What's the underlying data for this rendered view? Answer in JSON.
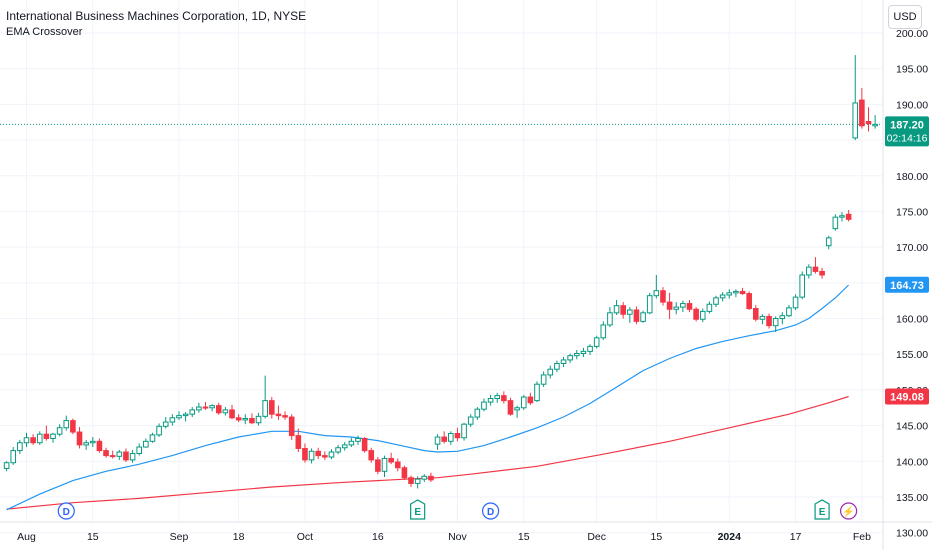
{
  "header": {
    "title": "International Business Machines Corporation, 1D, NYSE",
    "indicator": "EMA Crossover"
  },
  "currency_label": "USD",
  "colors": {
    "up": "#089981",
    "down": "#f23645",
    "ema_fast": "#2196f3",
    "ema_slow": "#f23645",
    "grid": "#f0f3fa",
    "last_price": "#089981"
  },
  "chart_data": {
    "type": "candlestick",
    "title": "International Business Machines Corporation, 1D, NYSE",
    "indicator": "EMA Crossover",
    "ylim": [
      127.0,
      201.0
    ],
    "y_ticks": [
      "200.00",
      "195.00",
      "190.00",
      "185.00",
      "180.00",
      "175.00",
      "170.00",
      "165.00",
      "160.00",
      "155.00",
      "150.00",
      "145.00",
      "140.00",
      "135.00",
      "130.00"
    ],
    "x_ticks": [
      {
        "label": "Aug",
        "index": 3,
        "bold": false
      },
      {
        "label": "15",
        "index": 13,
        "bold": false
      },
      {
        "label": "Sep",
        "index": 26,
        "bold": false
      },
      {
        "label": "18",
        "index": 35,
        "bold": false
      },
      {
        "label": "Oct",
        "index": 45,
        "bold": false
      },
      {
        "label": "16",
        "index": 56,
        "bold": false
      },
      {
        "label": "Nov",
        "index": 68,
        "bold": false
      },
      {
        "label": "15",
        "index": 78,
        "bold": false
      },
      {
        "label": "Dec",
        "index": 89,
        "bold": false
      },
      {
        "label": "15",
        "index": 98,
        "bold": false
      },
      {
        "label": "2024",
        "index": 109,
        "bold": true
      },
      {
        "label": "17",
        "index": 119,
        "bold": false
      },
      {
        "label": "Feb",
        "index": 129,
        "bold": false
      }
    ],
    "grid": true,
    "last_price": {
      "value": 187.2,
      "label": "187.20",
      "countdown": "02:14:16"
    },
    "ema_fast_label": {
      "value": 164.73,
      "label": "164.73"
    },
    "ema_slow_label": {
      "value": 149.08,
      "label": "149.08"
    },
    "candles": [
      [
        139.0,
        140.0,
        138.6,
        139.8
      ],
      [
        139.8,
        142.0,
        139.5,
        141.5
      ],
      [
        141.5,
        143.0,
        141.0,
        142.6
      ],
      [
        142.6,
        144.0,
        142.0,
        143.3
      ],
      [
        143.3,
        143.8,
        142.3,
        142.6
      ],
      [
        142.6,
        144.2,
        142.3,
        143.8
      ],
      [
        143.8,
        145.0,
        142.9,
        143.2
      ],
      [
        143.2,
        144.0,
        142.6,
        143.8
      ],
      [
        143.8,
        145.2,
        143.5,
        144.7
      ],
      [
        144.7,
        146.4,
        144.3,
        145.7
      ],
      [
        145.7,
        146.0,
        143.8,
        144.1
      ],
      [
        144.1,
        144.8,
        141.8,
        142.3
      ],
      [
        142.3,
        143.0,
        141.6,
        142.6
      ],
      [
        142.6,
        143.4,
        142.0,
        142.8
      ],
      [
        142.8,
        143.2,
        141.2,
        141.5
      ],
      [
        141.5,
        141.9,
        140.5,
        140.8
      ],
      [
        140.8,
        141.5,
        140.4,
        140.7
      ],
      [
        140.7,
        141.6,
        140.2,
        141.3
      ],
      [
        141.3,
        141.8,
        139.9,
        140.2
      ],
      [
        140.2,
        141.6,
        139.8,
        141.1
      ],
      [
        141.1,
        142.5,
        140.8,
        142.0
      ],
      [
        142.0,
        143.2,
        141.9,
        142.8
      ],
      [
        142.8,
        144.0,
        142.6,
        143.7
      ],
      [
        143.7,
        145.3,
        143.4,
        144.9
      ],
      [
        144.9,
        146.2,
        144.6,
        145.5
      ],
      [
        145.5,
        146.6,
        145.0,
        146.1
      ],
      [
        146.1,
        147.0,
        145.8,
        146.4
      ],
      [
        146.4,
        146.9,
        145.6,
        146.6
      ],
      [
        146.6,
        147.6,
        146.2,
        147.2
      ],
      [
        147.2,
        148.2,
        146.8,
        147.6
      ],
      [
        147.6,
        148.3,
        147.2,
        147.5
      ],
      [
        147.5,
        148.0,
        147.0,
        147.8
      ],
      [
        147.8,
        148.2,
        146.5,
        146.8
      ],
      [
        146.8,
        147.6,
        146.4,
        147.2
      ],
      [
        147.2,
        147.9,
        145.9,
        146.1
      ],
      [
        146.1,
        146.6,
        145.5,
        145.8
      ],
      [
        145.8,
        146.6,
        145.2,
        146.0
      ],
      [
        146.0,
        146.7,
        145.2,
        145.4
      ],
      [
        145.4,
        146.8,
        145.0,
        146.3
      ],
      [
        146.3,
        152.0,
        146.0,
        148.5
      ],
      [
        148.5,
        149.0,
        146.0,
        146.6
      ],
      [
        146.6,
        147.8,
        145.8,
        146.4
      ],
      [
        146.4,
        147.0,
        145.8,
        146.2
      ],
      [
        146.2,
        146.6,
        143.0,
        143.6
      ],
      [
        143.6,
        144.6,
        141.3,
        141.8
      ],
      [
        141.8,
        142.5,
        139.8,
        140.2
      ],
      [
        140.2,
        141.8,
        139.7,
        141.4
      ],
      [
        141.4,
        141.9,
        140.3,
        140.8
      ],
      [
        140.8,
        141.4,
        140.2,
        140.6
      ],
      [
        140.6,
        141.7,
        140.3,
        141.3
      ],
      [
        141.3,
        142.3,
        141.0,
        141.9
      ],
      [
        141.9,
        142.7,
        141.5,
        142.3
      ],
      [
        142.3,
        143.3,
        142.0,
        142.8
      ],
      [
        142.8,
        143.6,
        142.3,
        143.2
      ],
      [
        143.2,
        143.4,
        141.2,
        141.5
      ],
      [
        141.5,
        141.9,
        139.8,
        140.2
      ],
      [
        140.2,
        140.6,
        138.2,
        138.6
      ],
      [
        138.6,
        140.8,
        137.8,
        140.4
      ],
      [
        140.4,
        141.2,
        139.6,
        139.9
      ],
      [
        139.9,
        140.4,
        138.6,
        139.1
      ],
      [
        139.1,
        139.4,
        137.4,
        137.7
      ],
      [
        137.7,
        138.0,
        136.4,
        136.9
      ],
      [
        136.9,
        137.9,
        136.2,
        137.5
      ],
      [
        137.5,
        138.2,
        137.1,
        137.9
      ],
      [
        137.9,
        138.4,
        137.1,
        137.4
      ],
      [
        142.4,
        143.8,
        141.6,
        143.4
      ],
      [
        143.4,
        144.2,
        142.5,
        142.8
      ],
      [
        142.8,
        144.2,
        142.3,
        143.9
      ],
      [
        143.9,
        144.7,
        142.8,
        143.3
      ],
      [
        143.3,
        145.4,
        142.9,
        145.2
      ],
      [
        145.2,
        146.6,
        144.8,
        146.2
      ],
      [
        146.2,
        147.6,
        145.8,
        147.3
      ],
      [
        147.3,
        148.8,
        147.0,
        148.3
      ],
      [
        148.3,
        149.3,
        147.8,
        148.8
      ],
      [
        148.8,
        149.6,
        148.2,
        149.2
      ],
      [
        149.2,
        149.8,
        148.1,
        148.5
      ],
      [
        148.5,
        148.9,
        146.4,
        146.6
      ],
      [
        147.2,
        147.8,
        146.1,
        147.5
      ],
      [
        147.5,
        149.3,
        147.2,
        149.0
      ],
      [
        149.0,
        149.6,
        147.9,
        148.2
      ],
      [
        148.5,
        151.2,
        148.3,
        150.8
      ],
      [
        150.8,
        152.6,
        150.4,
        152.1
      ],
      [
        152.1,
        153.4,
        151.6,
        152.9
      ],
      [
        152.9,
        154.1,
        152.5,
        153.7
      ],
      [
        153.7,
        154.6,
        153.2,
        154.2
      ],
      [
        154.2,
        155.1,
        153.8,
        154.8
      ],
      [
        154.8,
        155.6,
        154.3,
        155.1
      ],
      [
        155.1,
        155.9,
        154.6,
        155.4
      ],
      [
        155.4,
        156.4,
        154.9,
        156.1
      ],
      [
        156.1,
        157.6,
        155.8,
        157.3
      ],
      [
        157.3,
        159.6,
        157.0,
        159.1
      ],
      [
        159.1,
        161.6,
        158.8,
        160.8
      ],
      [
        160.8,
        162.6,
        160.5,
        161.8
      ],
      [
        161.8,
        162.3,
        160.0,
        160.6
      ],
      [
        160.6,
        161.6,
        159.4,
        161.2
      ],
      [
        161.2,
        161.7,
        159.2,
        159.6
      ],
      [
        159.6,
        161.1,
        159.4,
        160.8
      ],
      [
        160.8,
        163.6,
        160.6,
        163.2
      ],
      [
        163.2,
        166.1,
        162.8,
        163.9
      ],
      [
        163.9,
        164.4,
        161.8,
        162.3
      ],
      [
        162.3,
        163.6,
        159.9,
        161.3
      ],
      [
        161.3,
        162.3,
        160.6,
        161.6
      ],
      [
        161.6,
        162.5,
        160.9,
        162.1
      ],
      [
        162.1,
        162.6,
        160.9,
        161.3
      ],
      [
        161.3,
        161.6,
        159.6,
        159.9
      ],
      [
        159.9,
        161.4,
        159.5,
        161.0
      ],
      [
        161.0,
        162.4,
        160.7,
        162.0
      ],
      [
        162.0,
        163.2,
        161.6,
        162.9
      ],
      [
        162.9,
        163.7,
        162.4,
        163.3
      ],
      [
        163.3,
        164.1,
        162.8,
        163.6
      ],
      [
        163.6,
        164.1,
        163.0,
        163.8
      ],
      [
        163.8,
        164.3,
        163.3,
        163.5
      ],
      [
        163.5,
        163.8,
        161.2,
        161.4
      ],
      [
        161.4,
        161.9,
        159.6,
        159.9
      ],
      [
        159.9,
        160.6,
        159.2,
        160.3
      ],
      [
        160.3,
        160.7,
        158.6,
        159.0
      ],
      [
        159.0,
        160.3,
        158.1,
        160.0
      ],
      [
        160.0,
        160.9,
        159.2,
        160.4
      ],
      [
        160.4,
        161.9,
        160.2,
        161.5
      ],
      [
        161.5,
        163.4,
        161.2,
        163.0
      ],
      [
        163.0,
        166.6,
        162.7,
        166.1
      ],
      [
        166.1,
        167.6,
        165.6,
        167.2
      ],
      [
        167.2,
        168.6,
        166.3,
        166.6
      ],
      [
        166.6,
        167.1,
        165.6,
        166.1
      ],
      [
        170.2,
        171.6,
        169.7,
        171.3
      ],
      [
        172.6,
        174.6,
        172.3,
        174.2
      ],
      [
        174.2,
        174.9,
        173.6,
        174.4
      ],
      [
        174.6,
        175.2,
        173.6,
        173.9
      ],
      [
        185.3,
        196.9,
        185.0,
        190.2
      ],
      [
        190.6,
        192.3,
        186.6,
        187.0
      ],
      [
        187.6,
        189.6,
        186.2,
        187.3
      ],
      [
        187.0,
        188.5,
        186.6,
        187.2
      ]
    ],
    "ema_fast": [
      [
        0,
        133.2
      ],
      [
        5,
        135.4
      ],
      [
        10,
        137.3
      ],
      [
        15,
        138.6
      ],
      [
        20,
        139.6
      ],
      [
        25,
        140.8
      ],
      [
        30,
        142.2
      ],
      [
        35,
        143.4
      ],
      [
        40,
        144.2
      ],
      [
        44,
        144.2
      ],
      [
        48,
        143.6
      ],
      [
        52,
        143.4
      ],
      [
        56,
        142.9
      ],
      [
        60,
        142.1
      ],
      [
        63,
        141.5
      ],
      [
        65,
        141.3
      ],
      [
        68,
        141.4
      ],
      [
        72,
        142.2
      ],
      [
        76,
        143.4
      ],
      [
        80,
        144.7
      ],
      [
        84,
        146.2
      ],
      [
        88,
        148.1
      ],
      [
        92,
        150.4
      ],
      [
        96,
        152.7
      ],
      [
        100,
        154.4
      ],
      [
        104,
        155.8
      ],
      [
        108,
        156.8
      ],
      [
        112,
        157.6
      ],
      [
        116,
        158.3
      ],
      [
        119,
        159.1
      ],
      [
        121,
        160.0
      ],
      [
        123,
        161.4
      ],
      [
        125,
        162.9
      ],
      [
        127,
        164.7
      ]
    ],
    "ema_slow": [
      [
        0,
        133.3
      ],
      [
        10,
        134.2
      ],
      [
        20,
        134.8
      ],
      [
        30,
        135.6
      ],
      [
        40,
        136.4
      ],
      [
        50,
        137.0
      ],
      [
        60,
        137.5
      ],
      [
        65,
        137.7
      ],
      [
        70,
        138.2
      ],
      [
        80,
        139.3
      ],
      [
        90,
        141.0
      ],
      [
        100,
        142.8
      ],
      [
        110,
        144.9
      ],
      [
        118,
        146.6
      ],
      [
        124,
        148.2
      ],
      [
        127,
        149.08
      ]
    ],
    "events": [
      {
        "label": "D",
        "index": 9,
        "kind": "dividend"
      },
      {
        "label": "E",
        "index": 62,
        "kind": "earnings"
      },
      {
        "label": "D",
        "index": 73,
        "kind": "dividend"
      },
      {
        "label": "E",
        "index": 123,
        "kind": "earnings"
      },
      {
        "label": "⚡",
        "index": 127,
        "kind": "split"
      }
    ]
  }
}
